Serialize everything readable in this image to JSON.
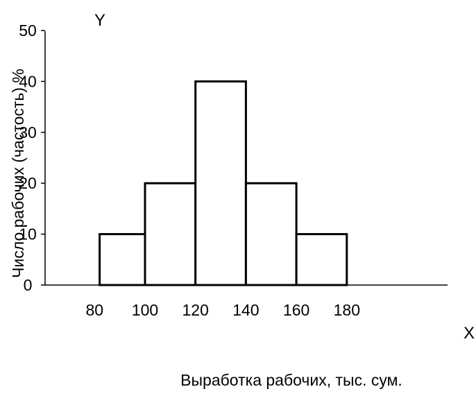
{
  "chart_data": {
    "type": "bar",
    "title": "",
    "xlabel": "Выработка рабочих, тыс. сум.",
    "ylabel": "Число рабочих (частость) %",
    "x_axis_letter": "X",
    "y_axis_letter": "Y",
    "x_ticks": [
      "80",
      "100",
      "120",
      "140",
      "160",
      "180"
    ],
    "y_ticks": [
      "0",
      "10",
      "20",
      "30",
      "40",
      "50"
    ],
    "ylim": [
      0,
      50
    ],
    "xlim": [
      65,
      210
    ],
    "bins": [
      {
        "from": 82,
        "to": 100,
        "value": 10
      },
      {
        "from": 100,
        "to": 120,
        "value": 20
      },
      {
        "from": 120,
        "to": 140,
        "value": 40
      },
      {
        "from": 140,
        "to": 160,
        "value": 20
      },
      {
        "from": 160,
        "to": 180,
        "value": 10
      }
    ],
    "bar_fill": "#ffffff",
    "bar_stroke": "#000000",
    "axis_color": "#000000",
    "grid": false,
    "legend": "none"
  }
}
